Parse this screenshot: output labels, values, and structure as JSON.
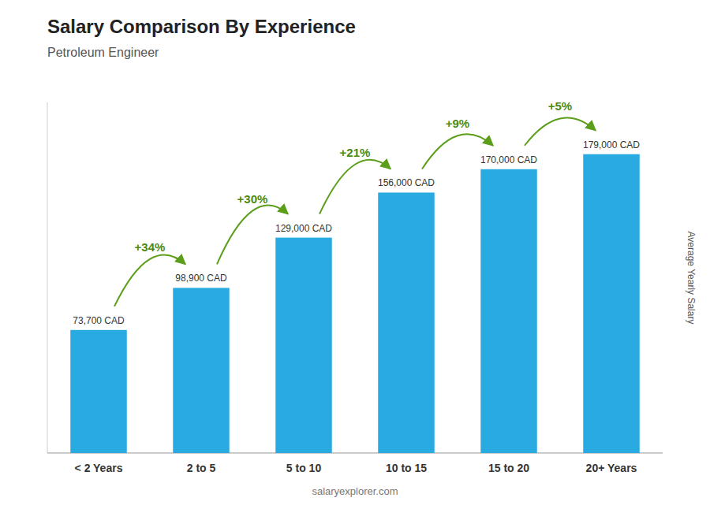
{
  "chart_data": {
    "type": "bar",
    "title": "Salary Comparison By Experience",
    "subtitle": "Petroleum Engineer",
    "y_label": "Average Yearly Salary",
    "footer": "salaryexplorer.com",
    "categories": [
      "< 2 Years",
      "2 to 5",
      "5 to 10",
      "10 to 15",
      "15 to 20",
      "20+ Years"
    ],
    "values": [
      73700,
      98900,
      129000,
      156000,
      170000,
      179000
    ],
    "value_labels": [
      "73,700 CAD",
      "98,900 CAD",
      "129,000 CAD",
      "156,000 CAD",
      "170,000 CAD",
      "179,000 CAD"
    ],
    "data_labels": true,
    "annotations": [
      "+34%",
      "+30%",
      "+21%",
      "+9%",
      "+5%"
    ],
    "color": "#29ABE2",
    "ylim": [
      0,
      210000
    ],
    "tick_labels": "x",
    "grid": false
  }
}
